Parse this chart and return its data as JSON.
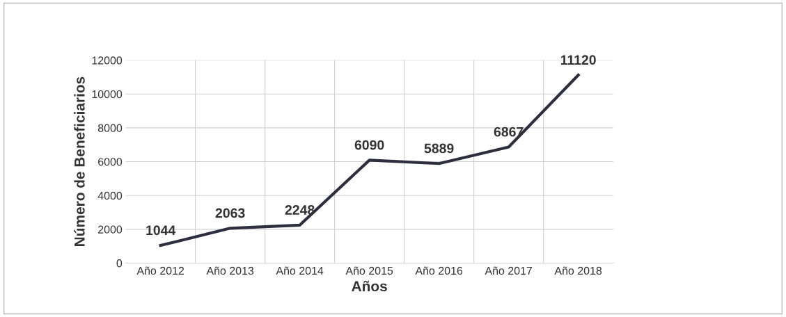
{
  "chart_data": {
    "type": "line",
    "xlabel": "Años",
    "ylabel": "Número de Beneficiarios",
    "categories": [
      "Año 2012",
      "Año 2013",
      "Año 2014",
      "Año 2015",
      "Año 2016",
      "Año 2017",
      "Año 2018"
    ],
    "series": [
      {
        "color": "#2e2e3e",
        "values": [
          1044,
          2063,
          2248,
          6090,
          5889,
          6867,
          11120
        ]
      }
    ],
    "ylim": [
      0,
      12000
    ],
    "yticks": [
      0,
      2000,
      4000,
      6000,
      8000,
      10000,
      12000
    ],
    "grid": true,
    "data_labels": true,
    "legend": false,
    "marker": "none",
    "line_style": "solid"
  }
}
